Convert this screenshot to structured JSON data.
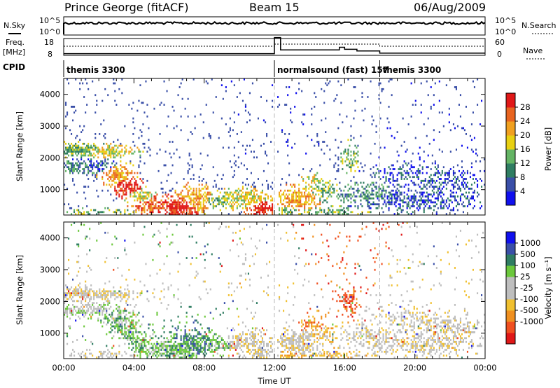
{
  "header": {
    "station": "Prince George (fitACF)",
    "beam": "Beam 15",
    "date": "06/Aug/2009"
  },
  "top_panels": {
    "nsky_label": "N.Sky",
    "nsky_ticks": [
      "10^5",
      "10^0"
    ],
    "nsearch_label": "N.Search",
    "nsearch_ticks": [
      "10^5",
      "10^0"
    ],
    "freq_label": "Freq.",
    "freq_unit": "[MHz]",
    "freq_ticks": [
      "18",
      "8"
    ],
    "nave_label": "Nave",
    "nave_ticks": [
      "60",
      "0"
    ],
    "cpid_label": "CPID"
  },
  "cpid": [
    {
      "name": "themis 3300",
      "start_h": 0.0,
      "end_h": 12.0
    },
    {
      "name": "normalsound (fast) 157",
      "start_h": 12.0,
      "end_h": 18.0
    },
    {
      "name": "themis 3300",
      "start_h": 18.0,
      "end_h": 24.0
    }
  ],
  "colors": {
    "power": [
      "#1010ee",
      "#3a4fa8",
      "#2f7d62",
      "#64b464",
      "#e8d012",
      "#f0a020",
      "#e86420",
      "#e01818"
    ],
    "velocity": [
      "#e01818",
      "#f05020",
      "#f09020",
      "#f0c030",
      "#bebebe",
      "#bebebe",
      "#6cc83c",
      "#2f7d62",
      "#3a4fa8",
      "#1010ee"
    ]
  },
  "chart_data": [
    {
      "type": "heatmap",
      "title": "Power",
      "xlabel": "",
      "ylabel": "Slant Range [km]",
      "xlim": [
        0,
        24
      ],
      "ylim": [
        200,
        4500
      ],
      "yticks": [
        "4000",
        "3000",
        "2000",
        "1000"
      ],
      "ytick_values": [
        4000,
        3000,
        2000,
        1000
      ],
      "colorbar_label": "Power [dB]",
      "colorbar_ticks": [
        "28",
        "24",
        "20",
        "16",
        "12",
        "8",
        "4"
      ],
      "colorbar_range": [
        0,
        32
      ]
    },
    {
      "type": "heatmap",
      "title": "Velocity",
      "xlabel": "Time UT",
      "ylabel": "Slant Range [km]",
      "xlim": [
        0,
        24
      ],
      "ylim": [
        200,
        4500
      ],
      "xticks": [
        "00:00",
        "04:00",
        "08:00",
        "12:00",
        "16:00",
        "20:00",
        "00:00"
      ],
      "xtick_values": [
        0,
        4,
        8,
        12,
        16,
        20,
        24
      ],
      "yticks": [
        "4000",
        "3000",
        "2000",
        "1000"
      ],
      "ytick_values": [
        4000,
        3000,
        2000,
        1000
      ],
      "colorbar_label": "Velocity [m s⁻¹]",
      "colorbar_ticks": [
        "1000",
        "500",
        "100",
        "25",
        "-25",
        "-100",
        "-500",
        "-1000"
      ]
    }
  ]
}
